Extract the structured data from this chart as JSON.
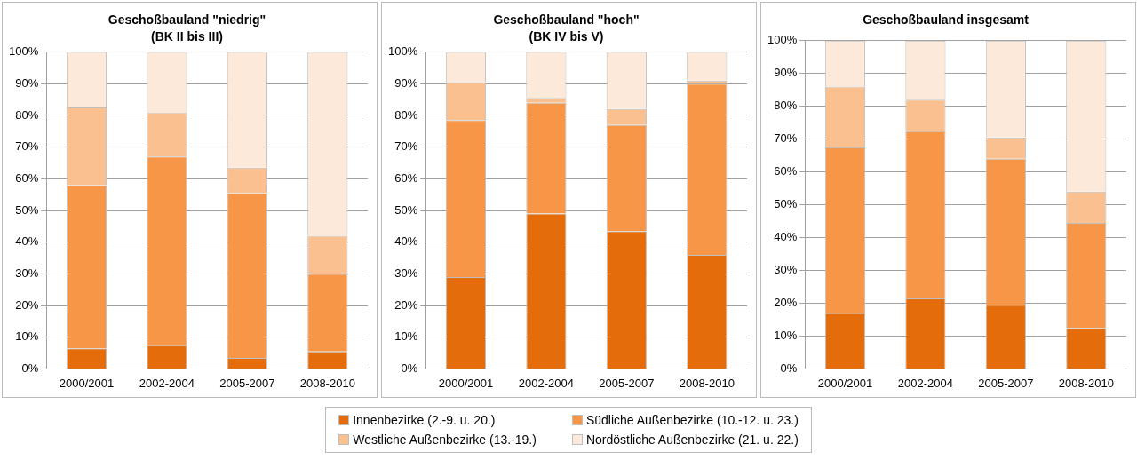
{
  "chart_data": [
    {
      "type": "bar",
      "stacked": true,
      "title": "Geschoßbauland \"niedrig\"",
      "subtitle": "(BK II bis III)",
      "categories": [
        "2000/2001",
        "2002-2004",
        "2005-2007",
        "2008-2010"
      ],
      "ylim": [
        0,
        100
      ],
      "yticks": [
        {
          "value": 0,
          "label": "0%"
        },
        {
          "value": 10,
          "label": "10%"
        },
        {
          "value": 20,
          "label": "20%"
        },
        {
          "value": 30,
          "label": "30%"
        },
        {
          "value": 40,
          "label": "40%"
        },
        {
          "value": 50,
          "label": "50%"
        },
        {
          "value": 60,
          "label": "60%"
        },
        {
          "value": 70,
          "label": "70%"
        },
        {
          "value": 80,
          "label": "80%"
        },
        {
          "value": 90,
          "label": "90%"
        },
        {
          "value": 100,
          "label": "100%"
        }
      ],
      "grid": "y",
      "legend": "bottom",
      "series": [
        {
          "name": "Innenbezirke (2.-9. u. 20.)",
          "color": "#e46c0a",
          "values": [
            6.5,
            7.5,
            3.5,
            5.5
          ]
        },
        {
          "name": "Südliche Außenbezirke (10.-12. u. 23.)",
          "color": "#f79646",
          "values": [
            51.5,
            59.5,
            52,
            24.5
          ]
        },
        {
          "name": "Westliche Außenbezirke (13.-19.)",
          "color": "#fac090",
          "values": [
            24.5,
            14,
            8,
            12
          ]
        },
        {
          "name": "Nordöstliche Außenbezirke (21. u. 22.)",
          "color": "#fde9d9",
          "values": [
            17.5,
            19,
            36.5,
            58
          ]
        }
      ]
    },
    {
      "type": "bar",
      "stacked": true,
      "title": "Geschoßbauland \"hoch\"",
      "subtitle": "(BK IV bis V)",
      "categories": [
        "2000/2001",
        "2002-2004",
        "2005-2007",
        "2008-2010"
      ],
      "ylim": [
        0,
        100
      ],
      "yticks": [
        {
          "value": 0,
          "label": "0%"
        },
        {
          "value": 10,
          "label": "10%"
        },
        {
          "value": 20,
          "label": "20%"
        },
        {
          "value": 30,
          "label": "30%"
        },
        {
          "value": 40,
          "label": "40%"
        },
        {
          "value": 50,
          "label": "50%"
        },
        {
          "value": 60,
          "label": "60%"
        },
        {
          "value": 70,
          "label": "70%"
        },
        {
          "value": 80,
          "label": "80%"
        },
        {
          "value": 90,
          "label": "90%"
        },
        {
          "value": 100,
          "label": "100%"
        }
      ],
      "grid": "y",
      "series": [
        {
          "color": "#e46c0a",
          "values": [
            29,
            49,
            43.5,
            36
          ]
        },
        {
          "color": "#f79646",
          "values": [
            49.5,
            35,
            33.5,
            54
          ]
        },
        {
          "color": "#fac090",
          "values": [
            12,
            1.5,
            5,
            1
          ]
        },
        {
          "color": "#fde9d9",
          "values": [
            9.5,
            14.5,
            18,
            9
          ]
        }
      ]
    },
    {
      "type": "bar",
      "stacked": true,
      "title": "Geschoßbauland insgesamt",
      "categories": [
        "2000/2001",
        "2002-2004",
        "2005-2007",
        "2008-2010"
      ],
      "ylim": [
        0,
        100
      ],
      "yticks": [
        {
          "value": 0,
          "label": "0%"
        },
        {
          "value": 10,
          "label": "10%"
        },
        {
          "value": 20,
          "label": "20%"
        },
        {
          "value": 30,
          "label": "30%"
        },
        {
          "value": 40,
          "label": "40%"
        },
        {
          "value": 50,
          "label": "50%"
        },
        {
          "value": 60,
          "label": "60%"
        },
        {
          "value": 70,
          "label": "70%"
        },
        {
          "value": 80,
          "label": "80%"
        },
        {
          "value": 90,
          "label": "90%"
        },
        {
          "value": 100,
          "label": "100%"
        }
      ],
      "grid": "y",
      "series": [
        {
          "color": "#e46c0a",
          "values": [
            17,
            21.5,
            19.5,
            12.5
          ]
        },
        {
          "color": "#f79646",
          "values": [
            50.5,
            51,
            44.5,
            32
          ]
        },
        {
          "color": "#fac090",
          "values": [
            18.5,
            9.5,
            6.5,
            9.5
          ]
        },
        {
          "color": "#fde9d9",
          "values": [
            14,
            18,
            29.5,
            46
          ]
        }
      ]
    }
  ]
}
